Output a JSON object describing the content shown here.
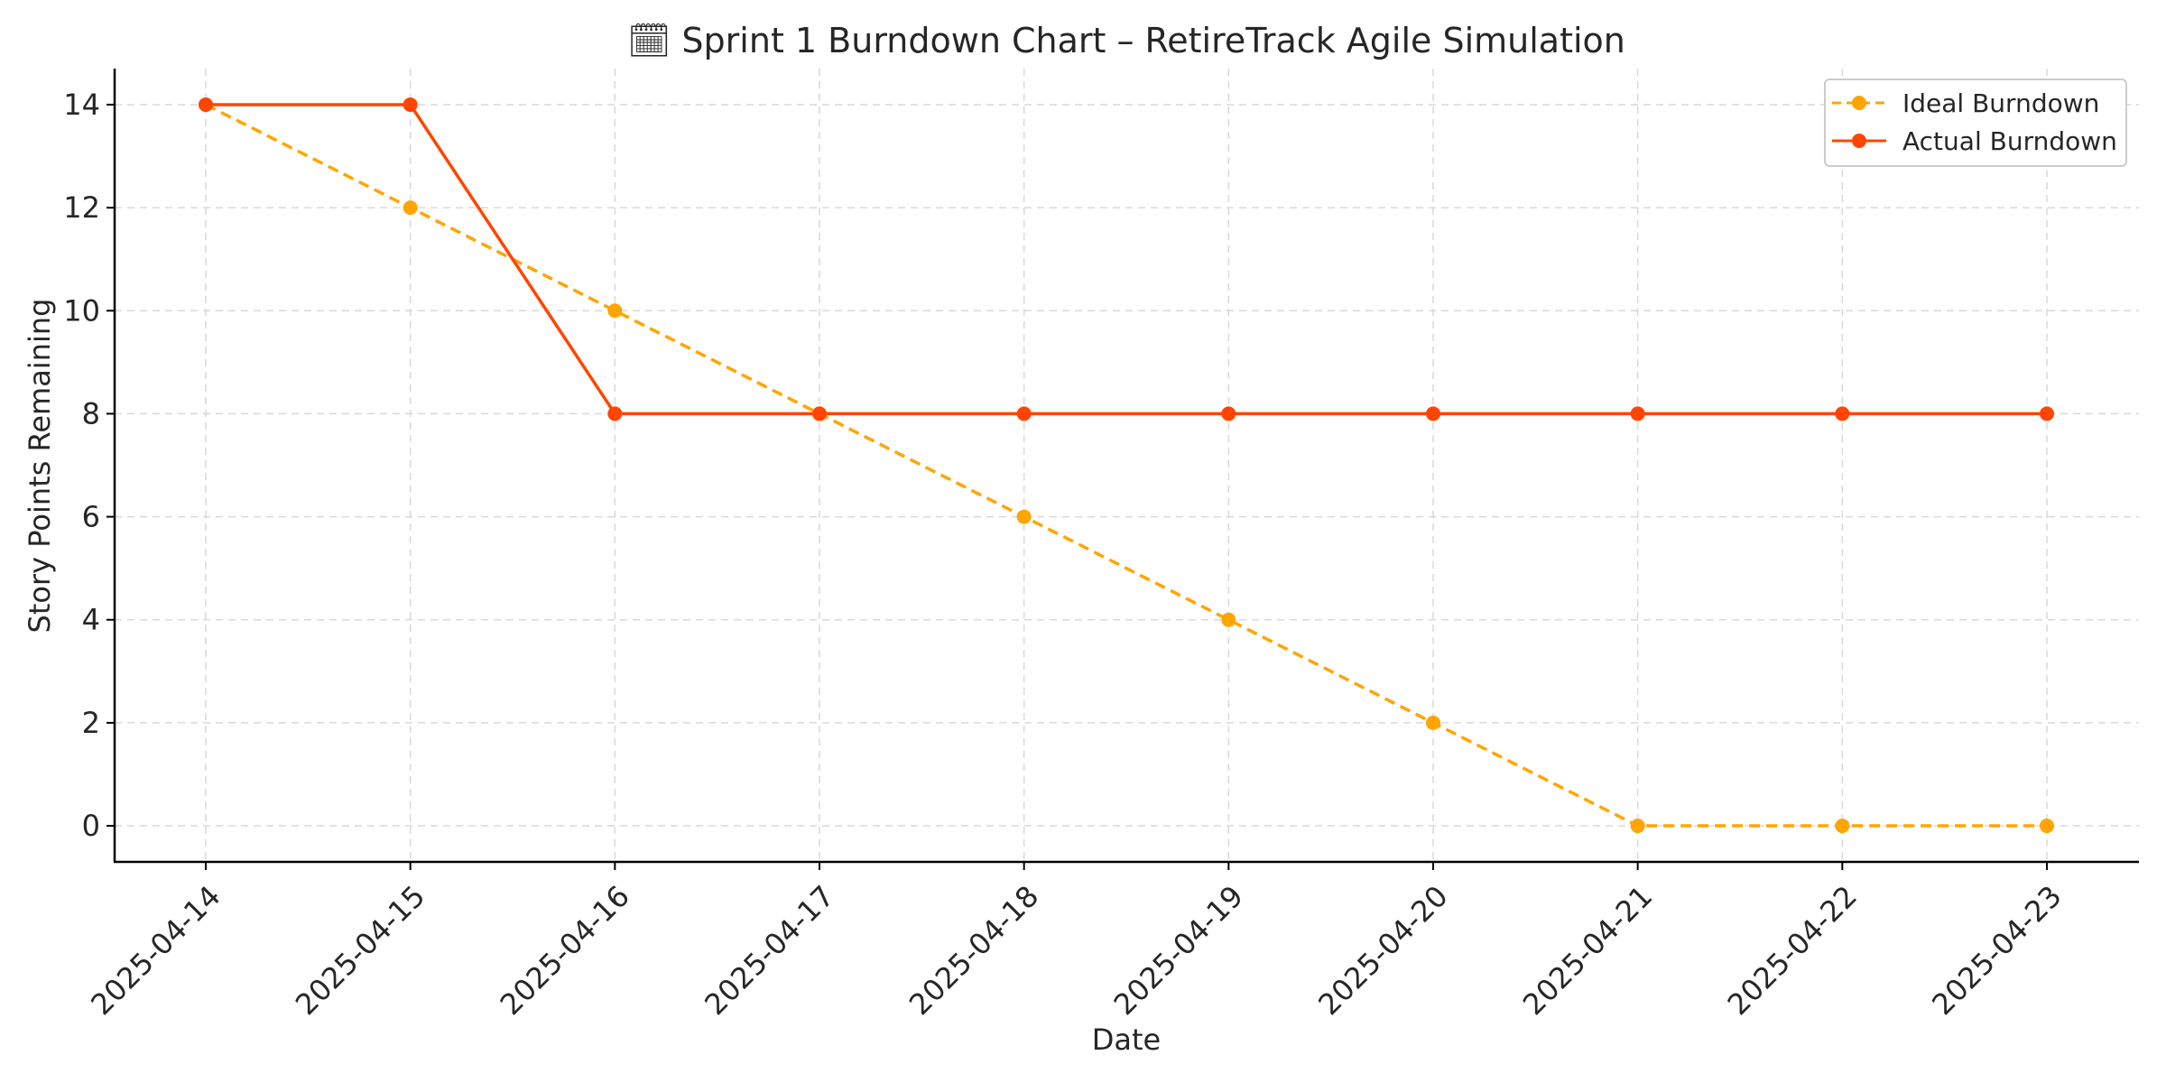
{
  "chart_data": {
    "type": "line",
    "title": "🗓 Sprint 1 Burndown Chart – RetireTrack Agile Simulation",
    "xlabel": "Date",
    "ylabel": "Story Points Remaining",
    "x": [
      "2025-04-14",
      "2025-04-15",
      "2025-04-16",
      "2025-04-17",
      "2025-04-18",
      "2025-04-19",
      "2025-04-20",
      "2025-04-21",
      "2025-04-22",
      "2025-04-23"
    ],
    "ylim": [
      -0.7,
      14.7
    ],
    "yticks": [
      0,
      2,
      4,
      6,
      8,
      10,
      12,
      14
    ],
    "grid": true,
    "legend_position": "top-right",
    "series": [
      {
        "name": "Ideal Burndown",
        "color": "#FFA500",
        "style": "dashed",
        "marker": "circle",
        "values": [
          14,
          12,
          10,
          8,
          6,
          4,
          2,
          0,
          0,
          0
        ]
      },
      {
        "name": "Actual Burndown",
        "color": "#FF4500",
        "style": "solid",
        "marker": "circle",
        "values": [
          14,
          14,
          8,
          8,
          8,
          8,
          8,
          8,
          8,
          8
        ]
      }
    ]
  }
}
